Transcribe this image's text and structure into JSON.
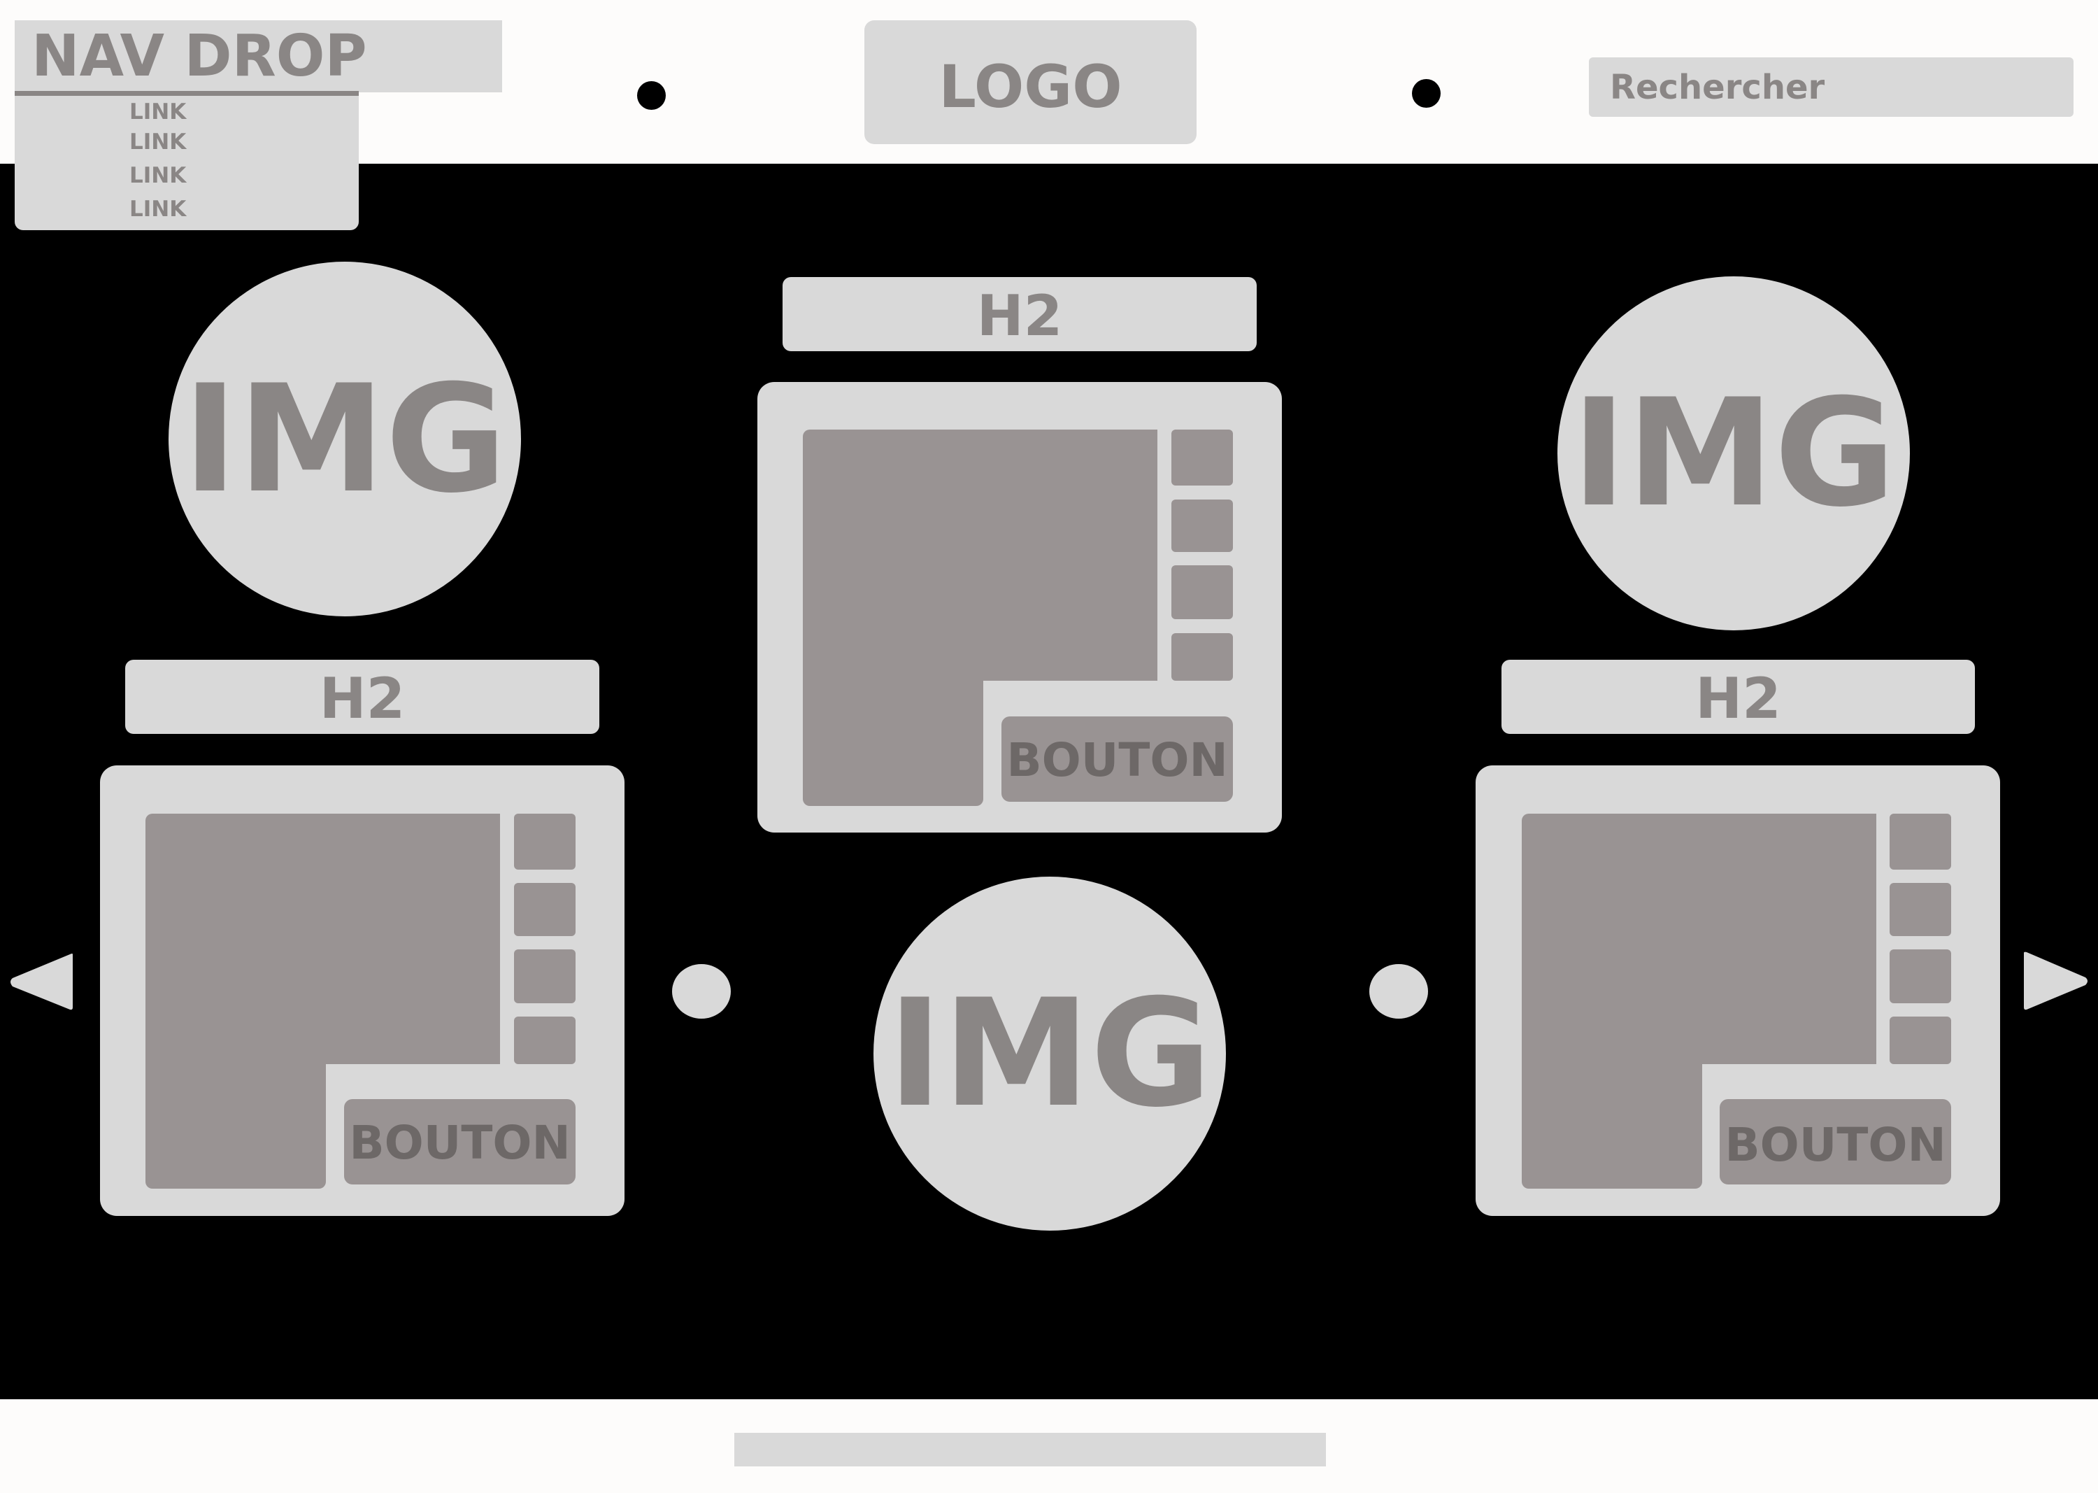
{
  "header": {
    "nav_drop_label": "NAV DROP",
    "nav_links": [
      "LINK",
      "LINK",
      "LINK",
      "LINK"
    ],
    "logo_label": "LOGO",
    "search_placeholder": "Rechercher"
  },
  "carousel": {
    "cards": [
      {
        "image_label": "IMG",
        "heading": "H2",
        "button_label": "BOUTON"
      },
      {
        "image_label": "IMG",
        "heading": "H2",
        "button_label": "BOUTON"
      },
      {
        "image_label": "IMG",
        "heading": "H2",
        "button_label": "BOUTON"
      }
    ],
    "prev_icon": "triangle-left-icon",
    "next_icon": "triangle-right-icon"
  },
  "colors": {
    "background_dark": "#000000",
    "placeholder_light": "#d9d9d9",
    "placeholder_mid": "#999393",
    "label_text": "#8a8685"
  }
}
